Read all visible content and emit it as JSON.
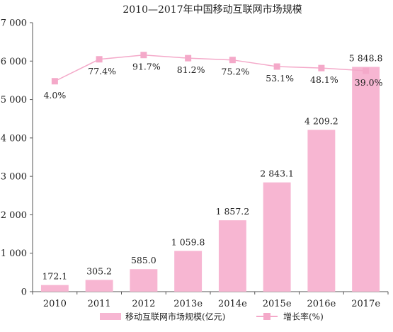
{
  "chart_data": {
    "type": "bar",
    "title": "2010—2017年中国移动互联网市场规模",
    "categories": [
      "2010",
      "2011",
      "2012",
      "2013e",
      "2014e",
      "2015e",
      "2016e",
      "2017e"
    ],
    "series": [
      {
        "name": "移动互联网市场规模(亿元)",
        "kind": "bar",
        "axis": "left",
        "color": "#f7b6d2",
        "values": [
          172.1,
          305.2,
          585.0,
          1059.8,
          1857.2,
          2843.1,
          4209.2,
          5848.8
        ],
        "labels": [
          "172.1",
          "305.2",
          "585.0",
          "1 059.8",
          "1 857.2",
          "2 843.1",
          "4 209.2",
          "5 848.8"
        ]
      },
      {
        "name": "增长率(%)",
        "kind": "line",
        "axis": "right-hidden",
        "color": "#f4a9c9",
        "values": [
          4.0,
          77.4,
          91.7,
          81.2,
          75.2,
          53.1,
          48.1,
          39.0
        ],
        "labels": [
          "4.0%",
          "77.4%",
          "91.7%",
          "81.2%",
          "75.2%",
          "53.1%",
          "48.1%",
          "39.0%"
        ]
      }
    ],
    "y_left": {
      "ylim": [
        0,
        7000
      ],
      "ticks": [
        0,
        1000,
        2000,
        3000,
        4000,
        5000,
        6000,
        7000
      ],
      "tick_labels": [
        "0",
        "1 000",
        "2 000",
        "3 000",
        "4 000",
        "5 000",
        "6 000",
        "7 000"
      ]
    },
    "y_right": {
      "ylim": [
        -700,
        200
      ]
    },
    "grid": false,
    "legend_position": "bottom-center"
  }
}
